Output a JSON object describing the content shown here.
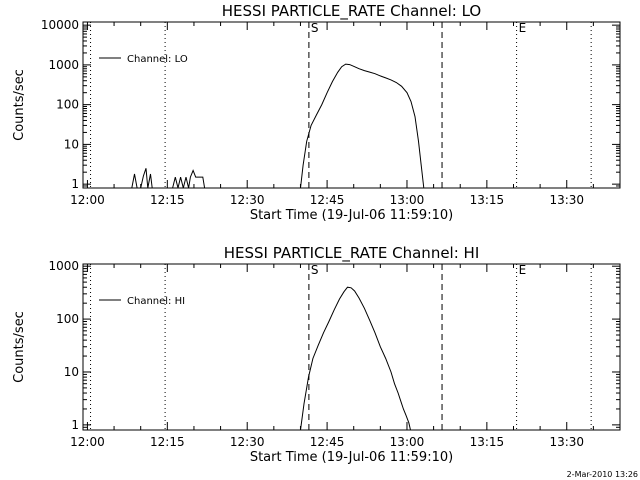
{
  "footer": {
    "timestamp": "2-Mar-2010 13:26"
  },
  "chart_data": [
    {
      "type": "line",
      "title": "HESSI PARTICLE_RATE Channel: LO",
      "xlabel": "Start Time (19-Jul-06 11:59:10)",
      "ylabel": "Counts/sec",
      "yscale": "log",
      "xlim": [
        "11:59:10",
        "13:40:00"
      ],
      "ylim": [
        0.8,
        12000
      ],
      "x_ticks": [
        "12:00",
        "12:15",
        "12:30",
        "12:45",
        "13:00",
        "13:15",
        "13:30"
      ],
      "y_ticks": [
        {
          "value": 1,
          "label": "1"
        },
        {
          "value": 10,
          "label": "10"
        },
        {
          "value": 100,
          "label": "100"
        },
        {
          "value": 1000,
          "label": "1000"
        },
        {
          "value": 10000,
          "label": "10000"
        }
      ],
      "legend": {
        "position": "top-left",
        "entries": [
          "Channel: LO"
        ]
      },
      "markers": [
        {
          "label": "",
          "x": "12:00:35",
          "style": "dotted"
        },
        {
          "label": "",
          "x": "12:14:35",
          "style": "dotted"
        },
        {
          "label": "S",
          "x": "12:41:35",
          "style": "dashed"
        },
        {
          "label": "",
          "x": "13:06:35",
          "style": "dashed"
        },
        {
          "label": "E",
          "x": "13:20:35",
          "style": "dotted"
        },
        {
          "label": "",
          "x": "13:34:35",
          "style": "dotted"
        }
      ],
      "series": [
        {
          "name": "Channel: LO",
          "segments": [
            [
              [
                "12:08:20",
                0.8
              ],
              [
                "12:08:50",
                1.8
              ],
              [
                "12:09:20",
                0.8
              ],
              [
                "12:10:00",
                0.8
              ],
              [
                "12:10:30",
                1.6
              ],
              [
                "12:11:00",
                2.5
              ],
              [
                "12:11:20",
                0.8
              ],
              [
                "12:11:50",
                1.8
              ],
              [
                "12:12:10",
                0.8
              ],
              [
                "12:16:00",
                0.8
              ],
              [
                "12:16:30",
                1.5
              ],
              [
                "12:17:00",
                0.8
              ],
              [
                "12:17:30",
                1.5
              ],
              [
                "12:18:00",
                0.8
              ],
              [
                "12:18:30",
                1.5
              ],
              [
                "12:19:00",
                0.8
              ],
              [
                "12:19:20",
                1.5
              ],
              [
                "12:19:50",
                2.2
              ],
              [
                "12:20:20",
                1.5
              ],
              [
                "12:21:00",
                1.5
              ],
              [
                "12:21:40",
                1.5
              ],
              [
                "12:22:00",
                0.8
              ]
            ],
            [
              [
                "12:40:00",
                0.8
              ],
              [
                "12:40:30",
                3
              ],
              [
                "12:41:10",
                12
              ],
              [
                "12:42:00",
                30
              ],
              [
                "12:43:00",
                55
              ],
              [
                "12:44:00",
                100
              ],
              [
                "12:45:00",
                200
              ],
              [
                "12:46:00",
                380
              ],
              [
                "12:47:00",
                650
              ],
              [
                "12:47:45",
                900
              ],
              [
                "12:48:30",
                1050
              ],
              [
                "12:49:15",
                1020
              ],
              [
                "12:50:00",
                920
              ],
              [
                "12:51:00",
                800
              ],
              [
                "12:52:00",
                720
              ],
              [
                "12:53:00",
                660
              ],
              [
                "12:54:00",
                600
              ],
              [
                "12:55:00",
                530
              ],
              [
                "12:56:00",
                470
              ],
              [
                "12:57:00",
                420
              ],
              [
                "12:58:00",
                360
              ],
              [
                "12:59:00",
                290
              ],
              [
                "13:00:00",
                200
              ],
              [
                "13:00:45",
                120
              ],
              [
                "13:01:30",
                50
              ],
              [
                "13:02:10",
                12
              ],
              [
                "13:02:40",
                3
              ],
              [
                "13:03:10",
                0.8
              ]
            ]
          ]
        }
      ]
    },
    {
      "type": "line",
      "title": "HESSI PARTICLE_RATE Channel: HI",
      "xlabel": "Start Time (19-Jul-06 11:59:10)",
      "ylabel": "Counts/sec",
      "yscale": "log",
      "xlim": [
        "11:59:10",
        "13:40:00"
      ],
      "ylim": [
        0.8,
        1100
      ],
      "x_ticks": [
        "12:00",
        "12:15",
        "12:30",
        "12:45",
        "13:00",
        "13:15",
        "13:30"
      ],
      "y_ticks": [
        {
          "value": 1,
          "label": "1"
        },
        {
          "value": 10,
          "label": "10"
        },
        {
          "value": 100,
          "label": "100"
        },
        {
          "value": 1000,
          "label": "1000"
        }
      ],
      "legend": {
        "position": "top-left",
        "entries": [
          "Channel: HI"
        ]
      },
      "markers": [
        {
          "label": "",
          "x": "12:00:35",
          "style": "dotted"
        },
        {
          "label": "",
          "x": "12:14:35",
          "style": "dotted"
        },
        {
          "label": "S",
          "x": "12:41:35",
          "style": "dashed"
        },
        {
          "label": "",
          "x": "13:06:35",
          "style": "dashed"
        },
        {
          "label": "E",
          "x": "13:20:35",
          "style": "dotted"
        },
        {
          "label": "",
          "x": "13:34:35",
          "style": "dotted"
        }
      ],
      "series": [
        {
          "name": "Channel: HI",
          "segments": [
            [
              [
                "12:40:00",
                0.8
              ],
              [
                "12:40:40",
                2.5
              ],
              [
                "12:41:30",
                8
              ],
              [
                "12:42:20",
                18
              ],
              [
                "12:43:20",
                32
              ],
              [
                "12:44:20",
                55
              ],
              [
                "12:45:20",
                90
              ],
              [
                "12:46:20",
                150
              ],
              [
                "12:47:20",
                240
              ],
              [
                "12:48:10",
                330
              ],
              [
                "12:48:50",
                400
              ],
              [
                "12:49:30",
                390
              ],
              [
                "12:50:10",
                340
              ],
              [
                "12:51:00",
                250
              ],
              [
                "12:52:00",
                160
              ],
              [
                "12:53:00",
                95
              ],
              [
                "12:54:00",
                55
              ],
              [
                "12:55:00",
                30
              ],
              [
                "12:56:00",
                18
              ],
              [
                "12:57:00",
                10
              ],
              [
                "12:57:40",
                6
              ],
              [
                "12:58:20",
                4
              ],
              [
                "12:58:50",
                2.8
              ],
              [
                "12:59:20",
                2
              ],
              [
                "12:59:50",
                1.5
              ],
              [
                "13:00:20",
                1.1
              ],
              [
                "13:00:40",
                0.8
              ]
            ]
          ]
        }
      ]
    }
  ]
}
